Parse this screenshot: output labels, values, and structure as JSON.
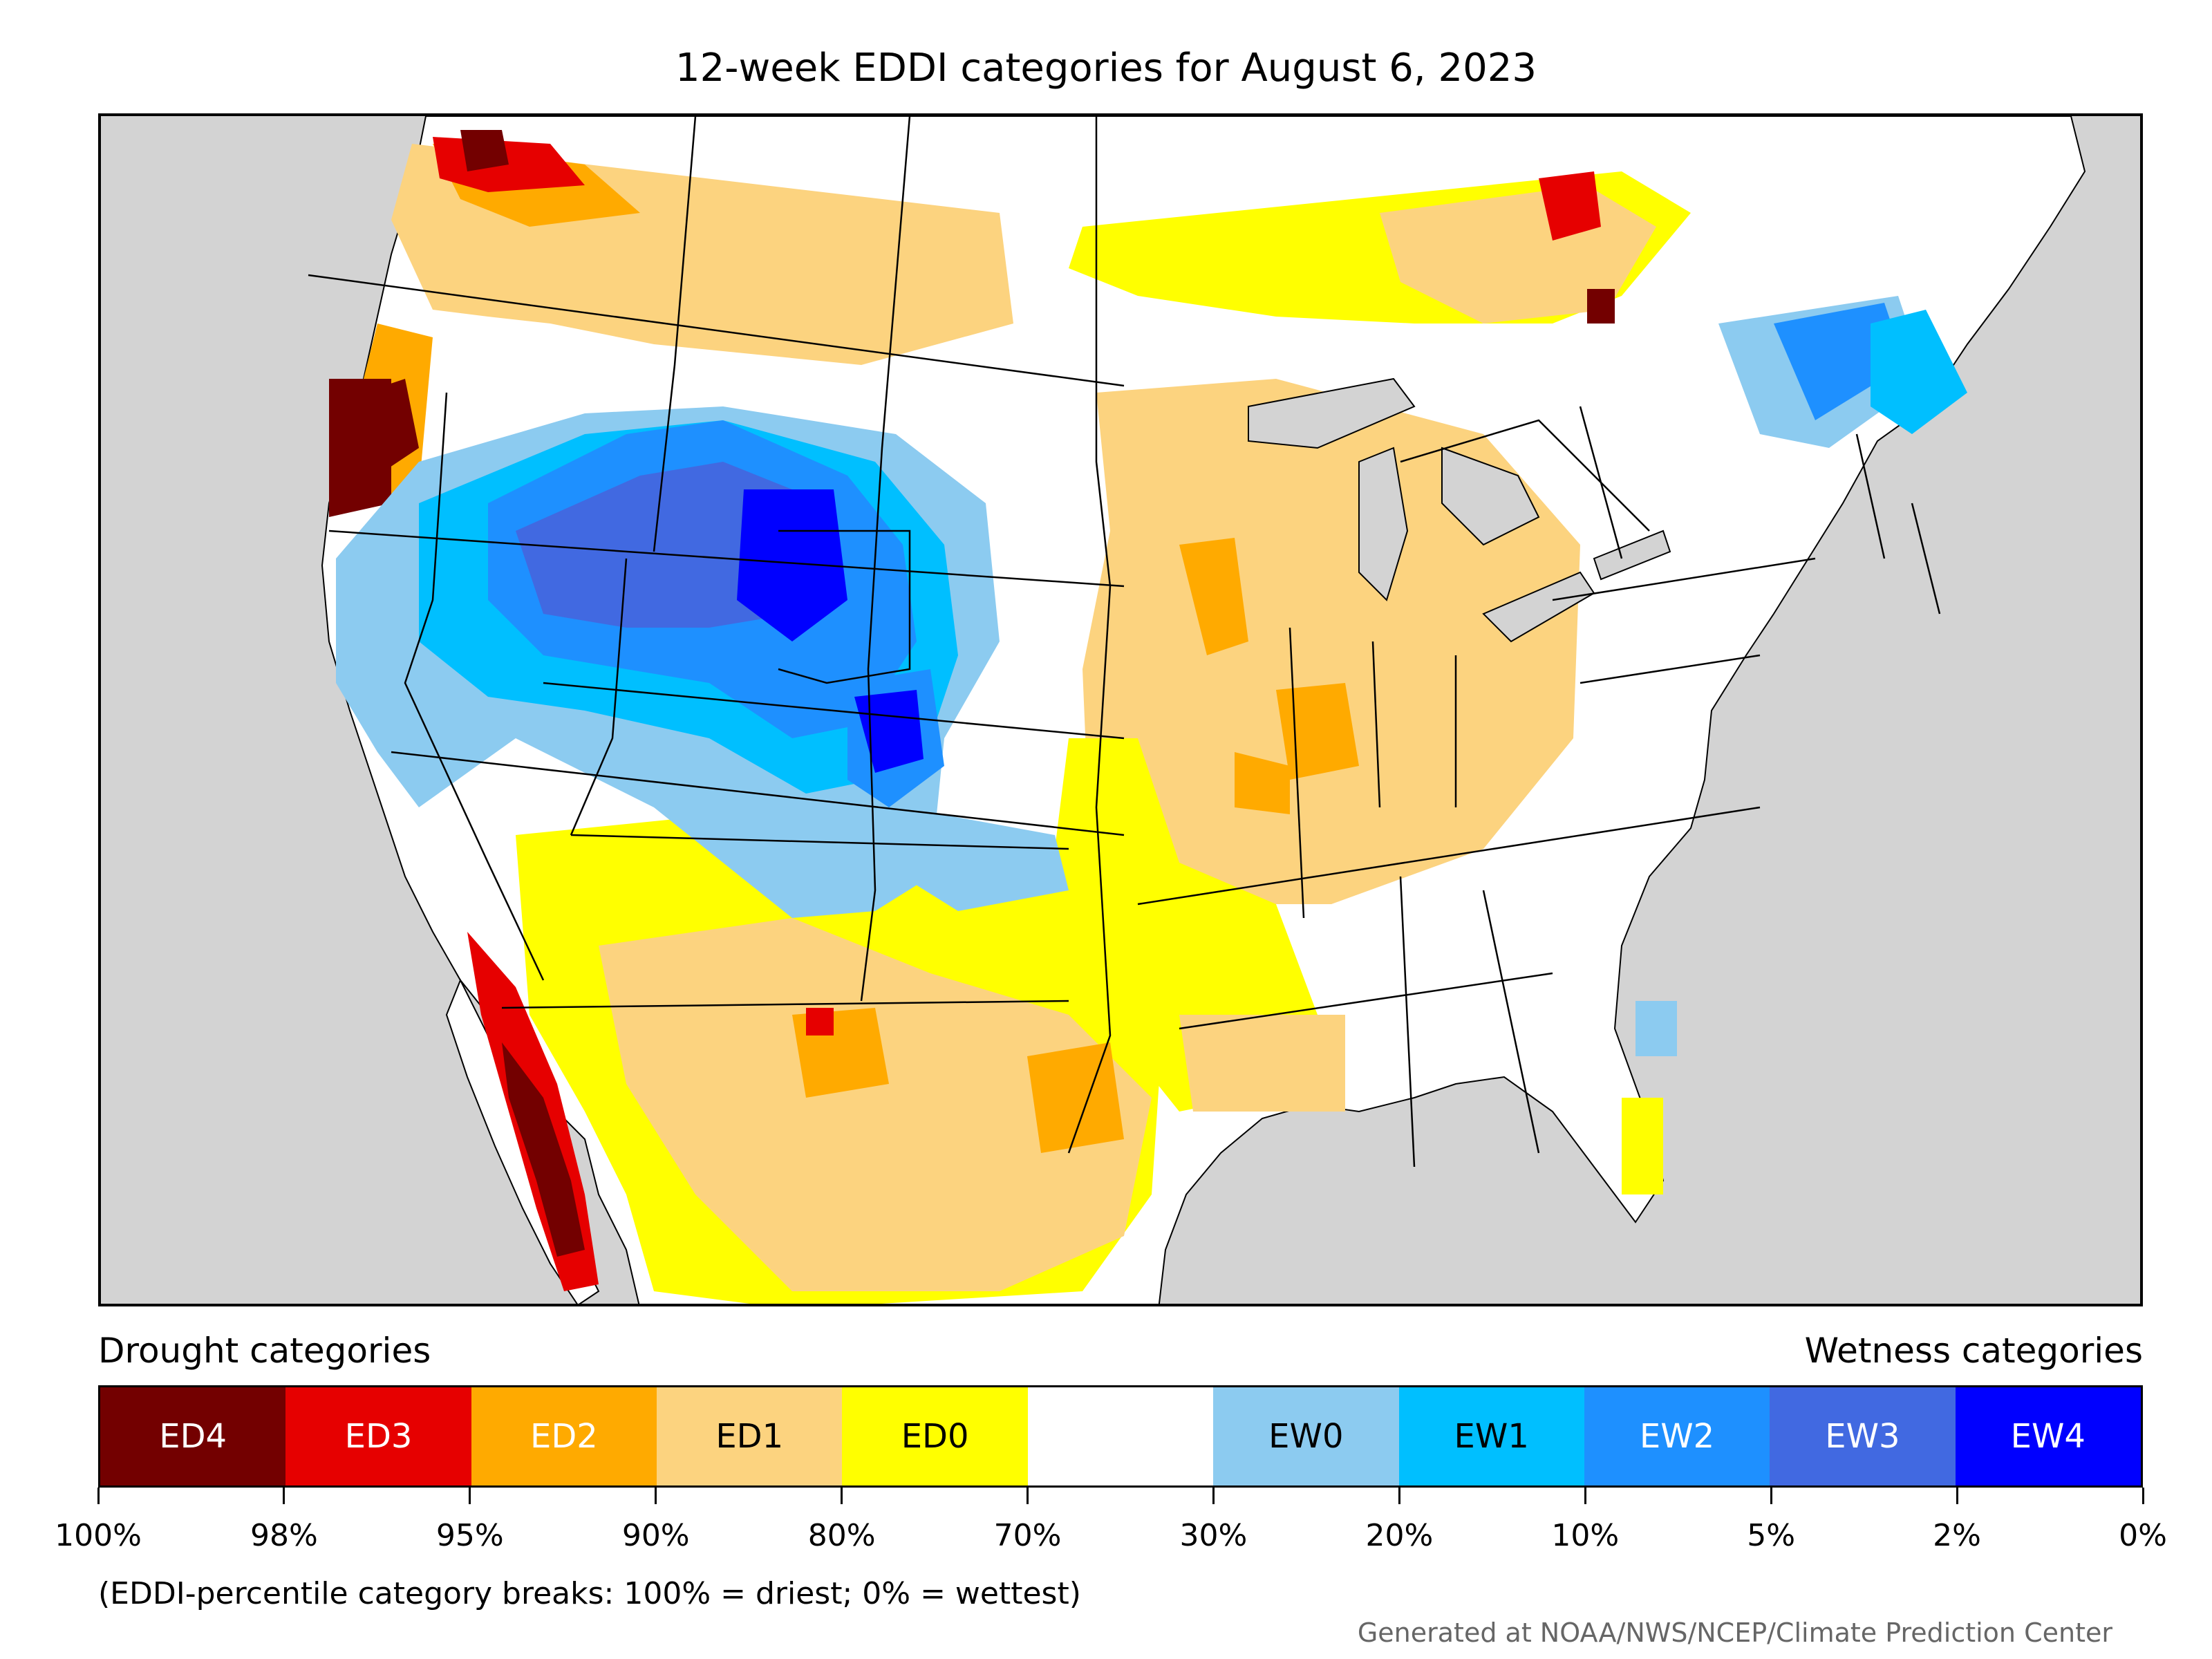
{
  "title": "12-week EDDI categories for August 6, 2023",
  "legend": {
    "drought_heading": "Drought categories",
    "wetness_heading": "Wetness categories",
    "categories": [
      {
        "label": "ED4",
        "color": "#730000",
        "text_color": "#ffffff"
      },
      {
        "label": "ED3",
        "color": "#e60000",
        "text_color": "#ffffff"
      },
      {
        "label": "ED2",
        "color": "#ffaa00",
        "text_color": "#ffffff"
      },
      {
        "label": "ED1",
        "color": "#fcd37f",
        "text_color": "#000000"
      },
      {
        "label": "ED0",
        "color": "#ffff00",
        "text_color": "#000000"
      },
      {
        "label": "",
        "color": "#ffffff",
        "text_color": "#000000"
      },
      {
        "label": "EW0",
        "color": "#8ccbf0",
        "text_color": "#000000"
      },
      {
        "label": "EW1",
        "color": "#00bfff",
        "text_color": "#000000"
      },
      {
        "label": "EW2",
        "color": "#1e90ff",
        "text_color": "#ffffff"
      },
      {
        "label": "EW3",
        "color": "#4169e1",
        "text_color": "#ffffff"
      },
      {
        "label": "EW4",
        "color": "#0000ff",
        "text_color": "#ffffff"
      }
    ],
    "ticks": [
      "100%",
      "98%",
      "95%",
      "90%",
      "80%",
      "70%",
      "30%",
      "20%",
      "10%",
      "5%",
      "2%",
      "0%"
    ]
  },
  "note": "(EDDI-percentile category breaks: 100% = driest; 0% = wettest)",
  "credit": "Generated at NOAA/NWS/NCEP/Climate Prediction Center",
  "map": {
    "land_color": "#ffffff",
    "water_color": "#d3d3d3",
    "boundary_color": "#000000"
  }
}
